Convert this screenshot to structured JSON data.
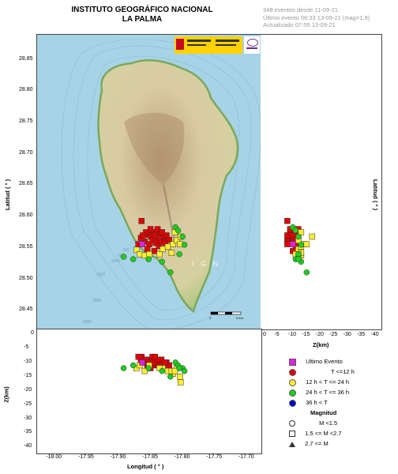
{
  "header": {
    "title_line1": "INSTITUTO GEOGRÁFICO NACIONAL",
    "title_line2": "LA PALMA",
    "info_line1": "348 eventos desde 11-09-21",
    "info_line2": "Último evento 06:33 13-09-21  (mag=1.9)",
    "info_line3": "Actualizado  07:55  13-09-21"
  },
  "map": {
    "lat_label": "Latitud ( ° )",
    "lon_label": "Longitud ( ° )",
    "z_label_bottom": "Z(km)",
    "z_label_right": "Z(km)",
    "lat_label_right": "Latitud ( ° )",
    "lat_ticks": [
      "28.85",
      "28.80",
      "28.75",
      "28.70",
      "28.65",
      "28.60",
      "28.55",
      "28.50",
      "28.45"
    ],
    "lon_ticks": [
      "-18.00",
      "-17.95",
      "-17.90",
      "-17.85",
      "-17.80",
      "-17.75",
      "-17.70"
    ],
    "depth_ticks": [
      "0",
      "-5",
      "-10",
      "-15",
      "-20",
      "-25",
      "-30",
      "-35",
      "-40"
    ],
    "right_depth_ticks": [
      "0",
      "-5",
      "-10",
      "-15",
      "-20",
      "-25",
      "-30",
      "-35",
      "-40"
    ],
    "contours": [
      "200",
      "500",
      "1000",
      "1500",
      "2000",
      "2500"
    ],
    "watermark": "I G N",
    "scale_ticks": [
      "0",
      "5 Km"
    ]
  },
  "legend": {
    "last_event": "Ultimo Evento",
    "t1": "T <=12 h",
    "t2": "12 h  < T <= 24 h",
    "t3": "24 h  < T <= 36 h",
    "t4": "36 h  <  T",
    "magnitude_title": "Magnitud",
    "m1": "M <1.5",
    "m2": "1.5 <= M <2.7",
    "m3": "2.7 <= M"
  },
  "colors": {
    "t1": "#e00000",
    "t2": "#ffee33",
    "t3": "#22cc22",
    "t4": "#0000cc",
    "last": "#dd22dd",
    "sea": "#a9d3e6",
    "land": "#cfc09a"
  },
  "chart_data": {
    "type": "scatter",
    "xlabel": "Longitud ( ° )",
    "ylabel": "Latitud ( ° )",
    "xlim": [
      -18.03,
      -17.68
    ],
    "ylim": [
      28.42,
      28.89
    ],
    "zlim": [
      0,
      -41
    ],
    "series": [
      {
        "name": "T <=12 h",
        "color": "#e00000",
        "points": [
          [
            -17.867,
            28.593,
            -8
          ],
          [
            -17.857,
            28.571,
            -9
          ],
          [
            -17.852,
            28.568,
            -10
          ],
          [
            -17.848,
            28.575,
            -11
          ],
          [
            -17.843,
            28.565,
            -9
          ],
          [
            -17.838,
            28.572,
            -10
          ],
          [
            -17.833,
            28.566,
            -12
          ],
          [
            -17.862,
            28.56,
            -10
          ],
          [
            -17.855,
            28.556,
            -11
          ],
          [
            -17.85,
            28.562,
            -8
          ],
          [
            -17.845,
            28.558,
            -10
          ],
          [
            -17.84,
            28.553,
            -11
          ],
          [
            -17.836,
            28.56,
            -9
          ],
          [
            -17.828,
            28.57,
            -10
          ],
          [
            -17.824,
            28.563,
            -11
          ],
          [
            -17.86,
            28.575,
            -9
          ],
          [
            -17.868,
            28.566,
            -10
          ],
          [
            -17.872,
            28.556,
            -8
          ],
          [
            -17.858,
            28.548,
            -12
          ],
          [
            -17.847,
            28.545,
            -10
          ],
          [
            -17.842,
            28.58,
            -9
          ],
          [
            -17.835,
            28.575,
            -11
          ],
          [
            -17.865,
            28.57,
            -10
          ],
          [
            -17.853,
            28.58,
            -12
          ],
          [
            -17.846,
            28.57,
            -8
          ],
          [
            -17.83,
            28.558,
            -10
          ]
        ]
      },
      {
        "name": "12 h  < T <= 24 h",
        "color": "#ffee33",
        "points": [
          [
            -17.875,
            28.547,
            -12
          ],
          [
            -17.87,
            28.54,
            -11
          ],
          [
            -17.862,
            28.538,
            -13
          ],
          [
            -17.834,
            28.548,
            -12
          ],
          [
            -17.826,
            28.552,
            -13
          ],
          [
            -17.818,
            28.556,
            -14
          ],
          [
            -17.812,
            28.562,
            -12
          ],
          [
            -17.807,
            28.556,
            -15
          ],
          [
            -17.82,
            28.542,
            -13
          ],
          [
            -17.806,
            28.568,
            -17
          ],
          [
            -17.839,
            28.54,
            -12
          ],
          [
            -17.855,
            28.54,
            -11
          ],
          [
            -17.815,
            28.575,
            -13
          ]
        ]
      },
      {
        "name": "24 h  < T <= 36 h",
        "color": "#22cc22",
        "points": [
          [
            -17.895,
            28.536,
            -12
          ],
          [
            -17.88,
            28.532,
            -11
          ],
          [
            -17.814,
            28.583,
            -10
          ],
          [
            -17.81,
            28.578,
            -11
          ],
          [
            -17.803,
            28.568,
            -12
          ],
          [
            -17.8,
            28.555,
            -13
          ],
          [
            -17.808,
            28.54,
            -12
          ],
          [
            -17.822,
            28.511,
            -15
          ],
          [
            -17.835,
            28.528,
            -13
          ],
          [
            -17.856,
            28.532,
            -12
          ]
        ]
      },
      {
        "name": "Ultimo Evento",
        "color": "#dd22dd",
        "points": [
          [
            -17.866,
            28.556,
            -10
          ]
        ]
      }
    ]
  }
}
